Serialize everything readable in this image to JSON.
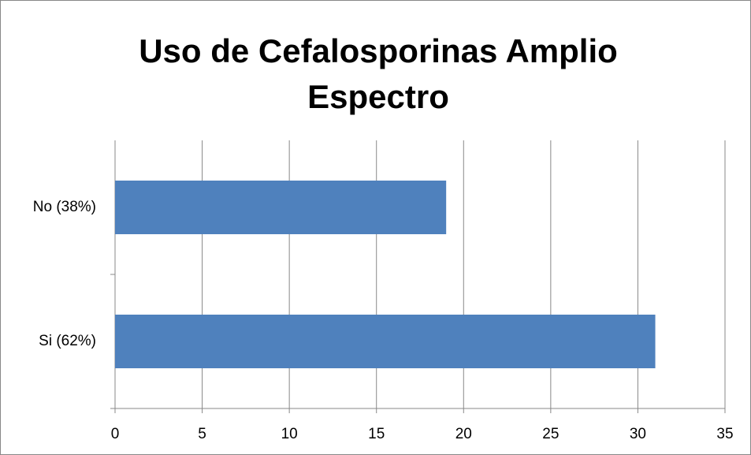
{
  "chart_data": {
    "type": "bar",
    "orientation": "horizontal",
    "title": "Uso de Cefalosporinas Amplio Espectro",
    "categories": [
      "Si (62%)",
      "No (38%)"
    ],
    "values": [
      31,
      19
    ],
    "color": "#4f81bd",
    "xlim": [
      0,
      35
    ],
    "xticks": [
      0,
      5,
      10,
      15,
      20,
      25,
      30,
      35
    ],
    "grid": true
  }
}
